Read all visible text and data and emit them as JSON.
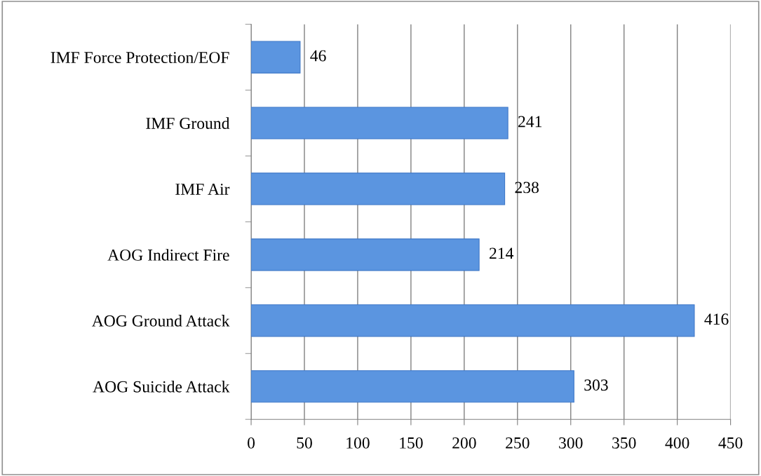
{
  "chart_data": {
    "type": "bar",
    "orientation": "horizontal",
    "categories": [
      "IMF Force Protection/EOF",
      "IMF Ground",
      "IMF Air",
      "AOG Indirect Fire",
      "AOG Ground Attack",
      "AOG Suicide Attack"
    ],
    "values": [
      46,
      241,
      238,
      214,
      416,
      303
    ],
    "color": "#5b95e0",
    "xlim": [
      0,
      450
    ],
    "xticks": [
      0,
      50,
      100,
      150,
      200,
      250,
      300,
      350,
      400,
      450
    ],
    "grid": "x",
    "data_labels": true,
    "legend": false
  }
}
